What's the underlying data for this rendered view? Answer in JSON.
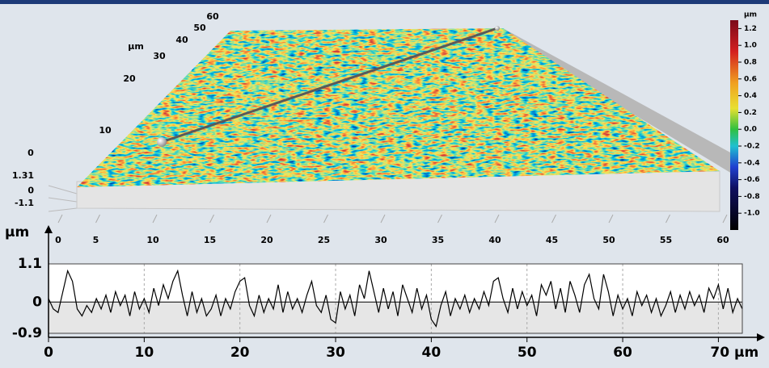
{
  "chart_data": [
    {
      "type": "surface",
      "xticks": [
        0,
        5,
        10,
        15,
        20,
        25,
        30,
        35,
        40,
        45,
        50,
        55,
        60
      ],
      "yticks": [
        0,
        10,
        20,
        30,
        40,
        50,
        60
      ],
      "ylabel": "µm",
      "zticks": [
        1.31,
        0,
        -1.1
      ],
      "colorbar": {
        "unit": "µm",
        "clim": [
          -1.2,
          1.3
        ],
        "ticks": [
          1.2,
          {
            "value": 1,
            "label": "1.0"
          },
          0.8,
          0.6,
          0.4,
          0.2,
          {
            "value": 0,
            "label": "0.0"
          },
          -0.2,
          -0.4,
          -0.6,
          -0.8,
          {
            "value": -1,
            "label": "-1.0"
          }
        ]
      }
    },
    {
      "type": "line",
      "ylabel": "µm",
      "x": [
        0,
        0.5,
        1,
        1.5,
        2,
        2.5,
        3,
        3.5,
        4,
        4.5,
        5,
        5.5,
        6,
        6.5,
        7,
        7.5,
        8,
        8.5,
        9,
        9.5,
        10,
        10.5,
        11,
        11.5,
        12,
        12.5,
        13,
        13.5,
        14,
        14.5,
        15,
        15.5,
        16,
        16.5,
        17,
        17.5,
        18,
        18.5,
        19,
        19.5,
        20,
        20.5,
        21,
        21.5,
        22,
        22.5,
        23,
        23.5,
        24,
        24.5,
        25,
        25.5,
        26,
        26.5,
        27,
        27.5,
        28,
        28.5,
        29,
        29.5,
        30,
        30.5,
        31,
        31.5,
        32,
        32.5,
        33,
        33.5,
        34,
        34.5,
        35,
        35.5,
        36,
        36.5,
        37,
        37.5,
        38,
        38.5,
        39,
        39.5,
        40,
        40.5,
        41,
        41.5,
        42,
        42.5,
        43,
        43.5,
        44,
        44.5,
        45,
        45.5,
        46,
        46.5,
        47,
        47.5,
        48,
        48.5,
        49,
        49.5,
        50,
        50.5,
        51,
        51.5,
        52,
        52.5,
        53,
        53.5,
        54,
        54.5,
        55,
        55.5,
        56,
        56.5,
        57,
        57.5,
        58,
        58.5,
        59,
        59.5,
        60,
        60.5,
        61,
        61.5,
        62,
        62.5,
        63,
        63.5,
        64,
        64.5,
        65,
        65.5,
        66,
        66.5,
        67,
        67.5,
        68,
        68.5,
        69,
        69.5,
        70,
        70.5,
        71,
        71.5,
        72,
        72.5
      ],
      "series": [
        {
          "color": "#000000",
          "values": [
            0.1,
            -0.2,
            -0.3,
            0.3,
            0.9,
            0.6,
            -0.2,
            -0.4,
            -0.1,
            -0.3,
            0.1,
            -0.2,
            0.2,
            -0.3,
            0.3,
            -0.1,
            0.2,
            -0.4,
            0.3,
            -0.2,
            0.1,
            -0.3,
            0.4,
            -0.1,
            0.5,
            0.1,
            0.6,
            0.9,
            0.2,
            -0.4,
            0.3,
            -0.3,
            0.1,
            -0.4,
            -0.2,
            0.2,
            -0.4,
            0.1,
            -0.2,
            0.3,
            0.6,
            0.7,
            -0.1,
            -0.4,
            0.2,
            -0.3,
            0.1,
            -0.2,
            0.5,
            -0.3,
            0.3,
            -0.2,
            0.1,
            -0.3,
            0.2,
            0.6,
            -0.1,
            -0.3,
            0.2,
            -0.5,
            -0.6,
            0.3,
            -0.2,
            0.2,
            -0.4,
            0.5,
            0.1,
            0.9,
            0.3,
            -0.3,
            0.4,
            -0.2,
            0.3,
            -0.4,
            0.5,
            0.1,
            -0.3,
            0.4,
            -0.2,
            0.2,
            -0.5,
            -0.7,
            -0.1,
            0.3,
            -0.4,
            0.1,
            -0.2,
            0.2,
            -0.3,
            0.1,
            -0.2,
            0.3,
            -0.1,
            0.6,
            0.7,
            0.1,
            -0.3,
            0.4,
            -0.2,
            0.3,
            -0.1,
            0.2,
            -0.4,
            0.5,
            0.2,
            0.6,
            -0.2,
            0.4,
            -0.3,
            0.6,
            0.2,
            -0.3,
            0.5,
            0.8,
            0.1,
            -0.2,
            0.8,
            0.3,
            -0.4,
            0.2,
            -0.2,
            0.1,
            -0.4,
            0.3,
            -0.1,
            0.2,
            -0.3,
            0.1,
            -0.4,
            -0.1,
            0.3,
            -0.3,
            0.2,
            -0.2,
            0.3,
            -0.1,
            0.2,
            -0.3,
            0.4,
            0.1,
            0.5,
            -0.2,
            0.4,
            -0.3,
            0.1,
            -0.2
          ]
        }
      ],
      "xlim": [
        0,
        72.5
      ],
      "ylim": [
        -0.9,
        1.1
      ],
      "xticks": [
        0,
        10,
        20,
        30,
        40,
        50,
        60,
        {
          "value": 70,
          "label": "70 µm"
        }
      ],
      "yticks": [
        1.1,
        0,
        -0.9
      ],
      "grid": true
    }
  ]
}
